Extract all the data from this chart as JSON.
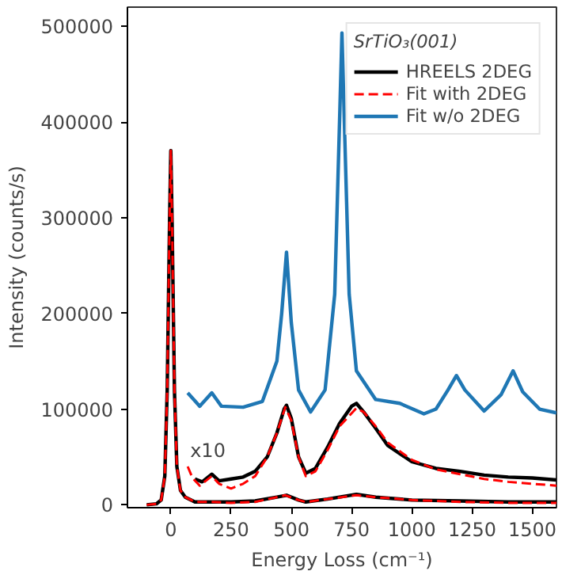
{
  "chart_data": {
    "type": "line",
    "xlabel": "Energy Loss (cm⁻¹)",
    "ylabel": "Intensity (counts/s)",
    "legend_title": "SrTiO₃(001)",
    "legend": "top right",
    "grid": false,
    "xlim": [
      -180,
      1600
    ],
    "ylim": [
      -3000,
      520000
    ],
    "xticks": [
      0,
      250,
      500,
      750,
      1000,
      1250,
      1500
    ],
    "yticks": [
      0,
      100000,
      200000,
      300000,
      400000,
      500000
    ],
    "annotations": [
      {
        "text": "x10",
        "x": 80,
        "y": 45000
      }
    ],
    "series": [
      {
        "name": "HREELS 2DEG",
        "color": "#000000",
        "line_style": "solid",
        "x": [
          -100,
          -60,
          -40,
          -25,
          -15,
          -5,
          0,
          5,
          15,
          25,
          40,
          60,
          100,
          170,
          250,
          350,
          440,
          480,
          530,
          560,
          650,
          770,
          850,
          1000,
          1200,
          1400,
          1600
        ],
        "values": [
          0,
          1000,
          5000,
          30000,
          120000,
          300000,
          370000,
          300000,
          120000,
          40000,
          15000,
          8000,
          3000,
          3000,
          3000,
          4000,
          8000,
          10000,
          5000,
          3000,
          6000,
          11000,
          8000,
          5000,
          4000,
          3000,
          3000
        ]
      },
      {
        "name": "Fit with 2DEG",
        "color": "#ff0000",
        "line_style": "dashed",
        "x": [
          -100,
          -60,
          -40,
          -25,
          -15,
          -5,
          0,
          5,
          15,
          25,
          40,
          60,
          100,
          170,
          250,
          350,
          440,
          475,
          530,
          560,
          650,
          770,
          850,
          1000,
          1200,
          1400,
          1600
        ],
        "values": [
          0,
          1000,
          5000,
          30000,
          120000,
          300000,
          370000,
          300000,
          120000,
          40000,
          15000,
          8000,
          3000,
          3000,
          2000,
          3000,
          8000,
          10000,
          5000,
          3000,
          6000,
          10000,
          8000,
          5000,
          3000,
          2000,
          2000
        ]
      },
      {
        "name": "Fit w/o 2DEG",
        "color": "#1f77b4",
        "line_style": "solid",
        "x": [
          70,
          120,
          170,
          210,
          300,
          380,
          440,
          460,
          480,
          500,
          530,
          580,
          640,
          680,
          700,
          710,
          720,
          740,
          770,
          850,
          950,
          1050,
          1100,
          1150,
          1185,
          1220,
          1300,
          1370,
          1420,
          1460,
          1530,
          1600
        ],
        "values": [
          117000,
          103000,
          117000,
          103000,
          102000,
          108000,
          150000,
          200000,
          264000,
          190000,
          120000,
          97000,
          120000,
          220000,
          400000,
          493000,
          400000,
          220000,
          140000,
          110000,
          106000,
          95000,
          100000,
          120000,
          135000,
          120000,
          98000,
          115000,
          140000,
          118000,
          100000,
          96000
        ]
      },
      {
        "color": "#000000",
        "line_style": "solid",
        "x": [
          100,
          130,
          170,
          200,
          250,
          300,
          350,
          400,
          440,
          470,
          480,
          500,
          530,
          560,
          600,
          650,
          700,
          750,
          770,
          800,
          850,
          900,
          1000,
          1100,
          1200,
          1300,
          1400,
          1500,
          1600
        ],
        "values": [
          27000,
          24000,
          32000,
          25000,
          27000,
          29000,
          35000,
          50000,
          75000,
          100000,
          104000,
          90000,
          50000,
          33000,
          38000,
          60000,
          85000,
          103000,
          106000,
          97000,
          80000,
          62000,
          45000,
          38000,
          35000,
          31000,
          29000,
          28000,
          26000
        ]
      },
      {
        "color": "#ff0000",
        "line_style": "dashed",
        "x": [
          70,
          90,
          120,
          170,
          200,
          250,
          300,
          350,
          400,
          440,
          475,
          500,
          530,
          560,
          600,
          650,
          700,
          770,
          800,
          850,
          900,
          1000,
          1100,
          1200,
          1300,
          1400,
          1500,
          1600
        ],
        "values": [
          40000,
          28000,
          20000,
          30000,
          22000,
          17000,
          22000,
          30000,
          50000,
          75000,
          102000,
          88000,
          50000,
          30000,
          35000,
          57000,
          82000,
          101000,
          97000,
          82000,
          65000,
          47000,
          37000,
          32000,
          27000,
          24000,
          22000,
          20000
        ]
      }
    ]
  }
}
